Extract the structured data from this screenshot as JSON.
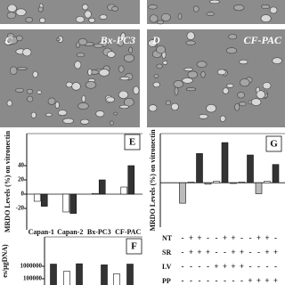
{
  "panels": {
    "C": {
      "label": "C",
      "caption": "Bx-PC3"
    },
    "D": {
      "label": "D",
      "caption": "CF-PAC"
    }
  },
  "chart_data": [
    {
      "type": "bar",
      "panel_label": "E",
      "y_label": "MRDO Levels (%) on vitronectin",
      "categories": [
        "Capan-1",
        "Capan-2",
        "Bx-PC3",
        "CF-PAC"
      ],
      "series": [
        {
          "color": "#ffffff",
          "values": [
            -10,
            -25,
            1,
            10
          ]
        },
        {
          "color": "#333333",
          "values": [
            -17,
            -27,
            20,
            40
          ]
        }
      ],
      "ylim": [
        -40,
        60
      ],
      "yticks": [
        -20,
        0,
        20,
        40
      ]
    },
    {
      "type": "bar",
      "panel_label": "G",
      "y_label": "MRDO Levels (%) on vitronectin",
      "categories": [
        null,
        null,
        null,
        null,
        null,
        null,
        null,
        null,
        null,
        null,
        null,
        null
      ],
      "values": [
        -28,
        1,
        40,
        -2,
        2,
        55,
        -1,
        1,
        38,
        -15,
        2,
        25
      ],
      "colors": [
        "#bbbbbb",
        "#ffffff",
        "#333333",
        "#bbbbbb",
        "#ffffff",
        "#333333",
        "#bbbbbb",
        "#ffffff",
        "#333333",
        "#bbbbbb",
        "#ffffff",
        "#333333"
      ],
      "ylim": [
        -40,
        60
      ],
      "table": {
        "rows": [
          {
            "label": "NT",
            "cells": [
              "-",
              "+",
              "+",
              "-",
              "-",
              "+",
              "+",
              "-",
              "-",
              "+",
              "+",
              "-"
            ]
          },
          {
            "label": "SR",
            "cells": [
              "-",
              "+",
              "+",
              "+",
              "-",
              "-",
              "+",
              "+",
              "-",
              "-",
              "+",
              "+"
            ]
          },
          {
            "label": "LV",
            "cells": [
              "-",
              "-",
              "-",
              "-",
              "+",
              "+",
              "+",
              "+",
              "-",
              "-",
              "-",
              "-"
            ]
          },
          {
            "label": "PP",
            "cells": [
              "-",
              "-",
              "-",
              "-",
              "-",
              "-",
              "-",
              "-",
              "+",
              "+",
              "+",
              "+"
            ]
          }
        ]
      }
    },
    {
      "type": "bar",
      "panel_label": "F",
      "y_label": "es/μgDNA)",
      "categories": [
        null,
        null,
        null,
        null,
        null,
        null
      ],
      "values": [
        1500000,
        400000,
        1600000,
        1300000,
        250000,
        1500000
      ],
      "colors": [
        "#333333",
        "#ffffff",
        "#333333",
        "#333333",
        "#ffffff",
        "#333333"
      ],
      "ylim": [
        30000,
        10000000
      ],
      "yticks": [
        100000,
        1000000
      ],
      "log_scale": true
    }
  ]
}
